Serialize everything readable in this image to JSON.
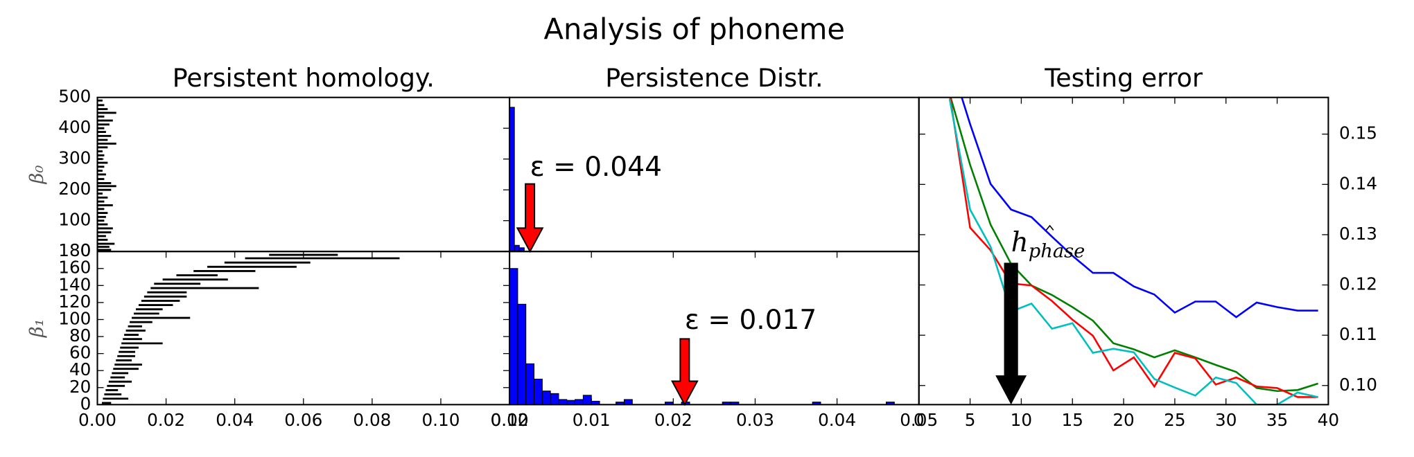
{
  "title": "Analysis of phoneme",
  "chart_data": [
    {
      "type": "barcode",
      "title": "Persistent homology.",
      "ylabel": "β₀",
      "color": "#000000",
      "xlim": [
        0,
        0.12
      ],
      "ylim": [
        0,
        500
      ],
      "yticks": [
        0,
        100,
        200,
        300,
        400,
        500
      ],
      "y": [
        5,
        15,
        25,
        38,
        50,
        62,
        75,
        88,
        100,
        112,
        125,
        138,
        150,
        162,
        175,
        188,
        200,
        212,
        222,
        235,
        250,
        262,
        275,
        288,
        300,
        312,
        325,
        338,
        350,
        362,
        375,
        388,
        400,
        412,
        425,
        438,
        450,
        462,
        475,
        490
      ],
      "deaths": [
        0.004,
        0.0035,
        0.005,
        0.003,
        0.0025,
        0.004,
        0.0045,
        0.003,
        0.002,
        0.0025,
        0.003,
        0.002,
        0.0045,
        0.002,
        0.003,
        0.0015,
        0.004,
        0.0055,
        0.004,
        0.002,
        0.0025,
        0.0015,
        0.002,
        0.003,
        0.0015,
        0.002,
        0.0015,
        0.003,
        0.0055,
        0.003,
        0.004,
        0.0025,
        0.002,
        0.0035,
        0.0045,
        0.002,
        0.0055,
        0.003,
        0.002,
        0.0015
      ]
    },
    {
      "type": "barcode",
      "ylabel": "β₁",
      "color": "#000000",
      "xlim": [
        0,
        0.12
      ],
      "ylim": [
        0,
        180
      ],
      "yticks": [
        0,
        20,
        40,
        60,
        80,
        100,
        120,
        140,
        160,
        180
      ],
      "xticks": [
        {
          "value": 0,
          "label": "0.00"
        },
        {
          "value": 0.02,
          "label": "0.02"
        },
        {
          "value": 0.04,
          "label": "0.04"
        },
        {
          "value": 0.06,
          "label": "0.06"
        },
        {
          "value": 0.08,
          "label": "0.08"
        },
        {
          "value": 0.1,
          "label": "0.10"
        },
        {
          "value": 0.12,
          "label": "0.12"
        }
      ],
      "y": [
        2,
        7,
        12,
        17,
        22,
        27,
        32,
        37,
        42,
        47,
        52,
        57,
        62,
        67,
        72,
        77,
        82,
        87,
        92,
        97,
        102,
        107,
        112,
        117,
        122,
        127,
        132,
        137,
        142,
        147,
        152,
        157,
        162,
        167,
        172,
        176
      ],
      "births": [
        0.0013,
        0.0016,
        0.002,
        0.0024,
        0.0028,
        0.0033,
        0.0038,
        0.0042,
        0.0046,
        0.005,
        0.0054,
        0.0058,
        0.0062,
        0.0066,
        0.007,
        0.0074,
        0.0078,
        0.0083,
        0.0089,
        0.0094,
        0.01,
        0.0106,
        0.0112,
        0.012,
        0.0128,
        0.0136,
        0.0145,
        0.0155,
        0.0165,
        0.019,
        0.023,
        0.028,
        0.032,
        0.037,
        0.043,
        0.05
      ],
      "deaths": [
        0.004,
        0.009,
        0.007,
        0.006,
        0.008,
        0.01,
        0.008,
        0.009,
        0.012,
        0.013,
        0.01,
        0.011,
        0.011,
        0.012,
        0.019,
        0.013,
        0.012,
        0.014,
        0.013,
        0.016,
        0.027,
        0.018,
        0.019,
        0.022,
        0.024,
        0.026,
        0.026,
        0.047,
        0.03,
        0.038,
        0.035,
        0.046,
        0.058,
        0.062,
        0.088,
        0.07
      ]
    },
    {
      "type": "histogram",
      "title": "Persistence Distr.",
      "color": "#0000ff",
      "xlim": [
        0,
        0.05
      ],
      "ylim": [
        0,
        500
      ],
      "bins": [
        0,
        0.0006,
        0.0012,
        0.0018
      ],
      "counts": [
        468,
        20,
        12
      ],
      "annotations": [
        {
          "text": "ε = 0.044",
          "x": 0.0025,
          "y": 0,
          "color": "#ff0000"
        }
      ]
    },
    {
      "type": "histogram",
      "color": "#0000ff",
      "xlim": [
        0,
        0.05
      ],
      "ylim": [
        0,
        180
      ],
      "xticks": [
        {
          "value": 0,
          "label": "0.00"
        },
        {
          "value": 0.01,
          "label": "0.01"
        },
        {
          "value": 0.02,
          "label": "0.02"
        },
        {
          "value": 0.03,
          "label": "0.03"
        },
        {
          "value": 0.04,
          "label": "0.04"
        },
        {
          "value": 0.05,
          "label": "0.05"
        }
      ],
      "bins": [
        0,
        0.001,
        0.002,
        0.003,
        0.004,
        0.005,
        0.006,
        0.007,
        0.008,
        0.009,
        0.01,
        0.011,
        0.012,
        0.013,
        0.014,
        0.015,
        0.016,
        0.017,
        0.018,
        0.019,
        0.02,
        0.021,
        0.022,
        0.023,
        0.024,
        0.025,
        0.026,
        0.027,
        0.028,
        0.029,
        0.03,
        0.031,
        0.032,
        0.033,
        0.034,
        0.035,
        0.036,
        0.037,
        0.038,
        0.039,
        0.04,
        0.041,
        0.042,
        0.043,
        0.044,
        0.045,
        0.046,
        0.047
      ],
      "counts": [
        160,
        118,
        48,
        30,
        16,
        13,
        6,
        5,
        6,
        11,
        4,
        0,
        0,
        3,
        6,
        0,
        0,
        0,
        0,
        3,
        0,
        3,
        0,
        0,
        0,
        0,
        3,
        3,
        0,
        0,
        0,
        0,
        0,
        0,
        0,
        0,
        0,
        3,
        0,
        0,
        0,
        0,
        0,
        0,
        0,
        0,
        3
      ],
      "annotations": [
        {
          "text": "ε = 0.017",
          "x": 0.0214,
          "y": 0,
          "color": "#ff0000"
        }
      ]
    },
    {
      "type": "line",
      "title": "Testing error",
      "xlim": [
        0,
        40
      ],
      "xticks": [
        0,
        5,
        10,
        15,
        20,
        25,
        30,
        35,
        40
      ],
      "ylim": [
        0.0962,
        0.1573
      ],
      "yticks": [
        {
          "value": 0.1,
          "label": "0.10"
        },
        {
          "value": 0.11,
          "label": "0.11"
        },
        {
          "value": 0.12,
          "label": "0.12"
        },
        {
          "value": 0.13,
          "label": "0.13"
        },
        {
          "value": 0.14,
          "label": "0.14"
        },
        {
          "value": 0.15,
          "label": "0.15"
        }
      ],
      "x": [
        3,
        5,
        7,
        9,
        11,
        13,
        15,
        17,
        19,
        21,
        23,
        25,
        27,
        29,
        31,
        33,
        35,
        37,
        39
      ],
      "series": [
        {
          "color": "#0000ff",
          "values": [
            0.165,
            0.152,
            0.1401,
            0.135,
            0.1335,
            0.1296,
            0.1258,
            0.1224,
            0.1224,
            0.1197,
            0.1181,
            0.1145,
            0.1167,
            0.1167,
            0.1136,
            0.1165,
            0.1156,
            0.1149,
            0.1149
          ]
        },
        {
          "color": "#008000",
          "values": [
            0.158,
            0.1439,
            0.132,
            0.1242,
            0.1199,
            0.118,
            0.1156,
            0.1129,
            0.1084,
            0.1072,
            0.1056,
            0.107,
            0.1056,
            0.1041,
            0.1027,
            0.0995,
            0.0989,
            0.0991,
            0.1004
          ]
        },
        {
          "color": "#ff0000",
          "values": [
            0.158,
            0.1314,
            0.1269,
            0.1203,
            0.1199,
            0.1168,
            0.1131,
            0.1099,
            0.103,
            0.1056,
            0.0998,
            0.1065,
            0.1054,
            0.1002,
            0.1016,
            0.0998,
            0.0995,
            0.0977,
            0.0977
          ]
        },
        {
          "color": "#00bfbf",
          "values": [
            0.157,
            0.135,
            0.1276,
            0.1147,
            0.1163,
            0.1113,
            0.1124,
            0.1065,
            0.1073,
            0.1066,
            0.1013,
            0.0996,
            0.098,
            0.1016,
            0.1005,
            0.0962,
            0.0962,
            0.0986,
            0.0977
          ]
        }
      ],
      "annotations": [
        {
          "text": "h",
          "subscript": "phase",
          "x": 9,
          "y": 0.0965,
          "color": "#000000"
        }
      ]
    }
  ]
}
